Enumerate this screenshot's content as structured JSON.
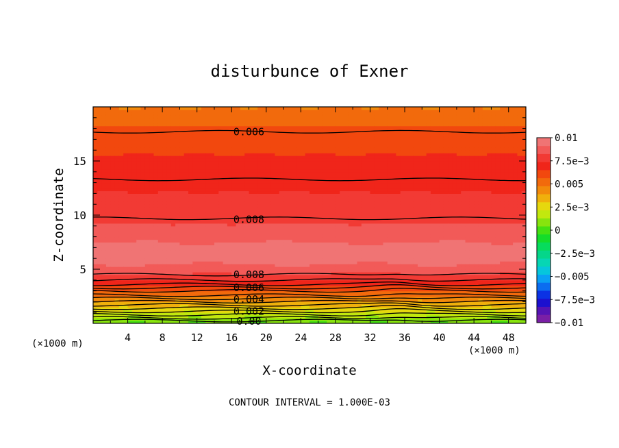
{
  "chart_data": {
    "type": "heatmap",
    "title": "disturbunce of Exner",
    "xlabel": "X-coordinate",
    "ylabel": "Z-coordinate",
    "x_unit_left": "(×1000 m)",
    "x_unit_right": "(×1000 m)",
    "footer": "CONTOUR INTERVAL = 1.000E-03",
    "xlim": [
      0,
      50
    ],
    "ylim": [
      0,
      20
    ],
    "x_ticks": [
      4,
      8,
      12,
      16,
      20,
      24,
      28,
      32,
      36,
      40,
      44,
      48
    ],
    "y_ticks": [
      5,
      10,
      15
    ],
    "colorbar": {
      "min": -0.01,
      "max": 0.01,
      "labels": [
        "0.01",
        "7.5e-3",
        "0.005",
        "2.5e-3",
        "0",
        "-2.5e-3",
        "-0.005",
        "-7.5e-3",
        "-0.01"
      ],
      "label_values": [
        0.01,
        0.0075,
        0.005,
        0.0025,
        0,
        -0.0025,
        -0.005,
        -0.0075,
        -0.01
      ],
      "colors": [
        "#7a1fa6",
        "#5514b4",
        "#1c10cf",
        "#0b32e4",
        "#0b6df0",
        "#0aa0f4",
        "#06c6dc",
        "#06d6b4",
        "#05d68a",
        "#07dc5c",
        "#14dc2a",
        "#45e012",
        "#88e40e",
        "#c2e80e",
        "#e6d80e",
        "#f0b00c",
        "#f28a0b",
        "#f26a0c",
        "#f2480e",
        "#f0251a",
        "#f23a34",
        "#f25a58",
        "#f07474"
      ]
    },
    "contour_labels": [
      {
        "text": "0.006",
        "x": 18,
        "z": 17.7
      },
      {
        "text": "0.008",
        "x": 18,
        "z": 9.6
      },
      {
        "text": "0.008",
        "x": 18,
        "z": 4.5
      },
      {
        "text": "0.006",
        "x": 18,
        "z": 3.3
      },
      {
        "text": "0.004",
        "x": 18,
        "z": 2.2
      },
      {
        "text": "0.002",
        "x": 18,
        "z": 1.1
      },
      {
        "text": "0.00",
        "x": 18,
        "z": 0.2
      }
    ]
  }
}
